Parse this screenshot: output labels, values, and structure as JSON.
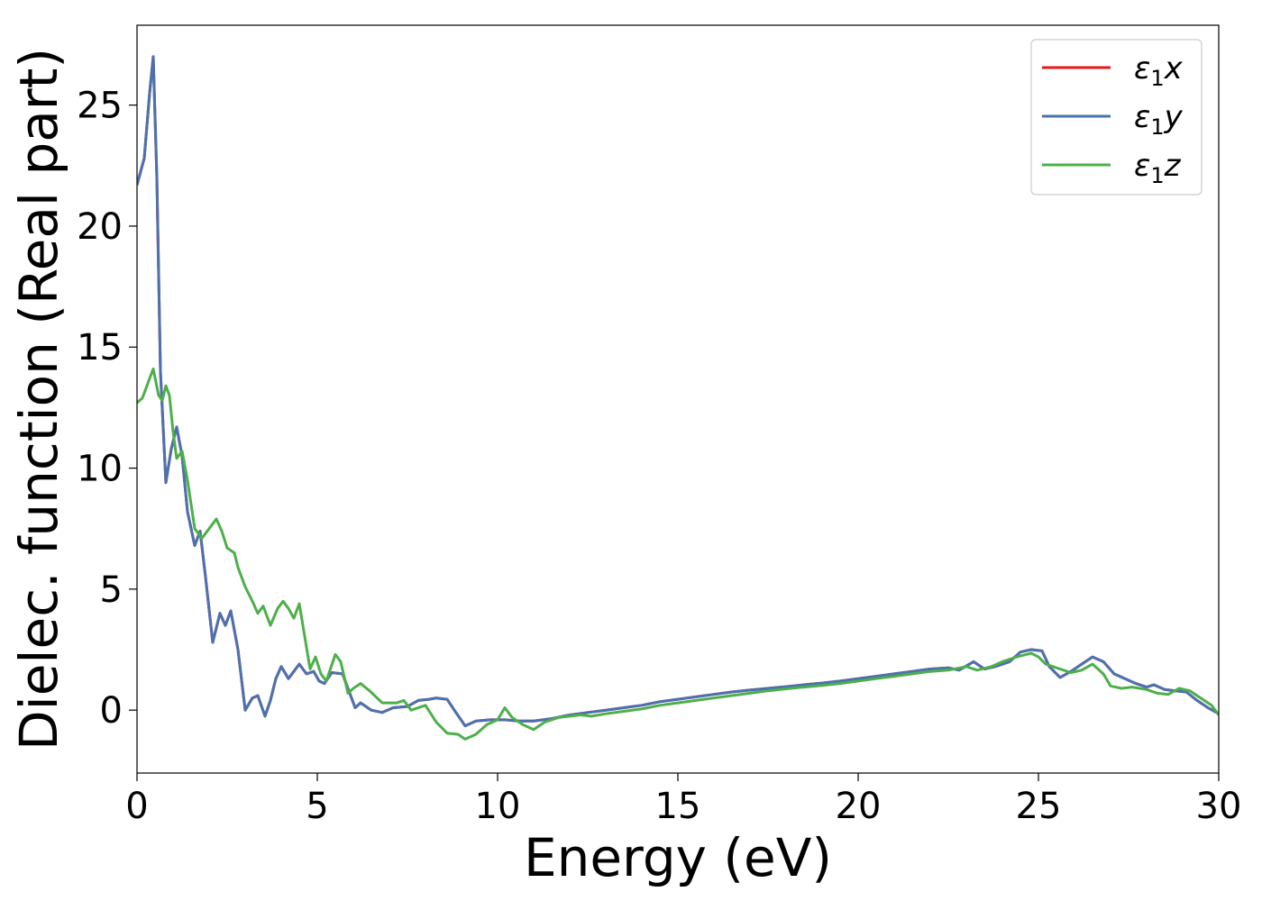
{
  "chart_data": {
    "type": "line",
    "title": "",
    "xlabel": "Energy (eV)",
    "ylabel": "Dielec. function (Real part)",
    "xlim": [
      0,
      30
    ],
    "ylim": [
      -2.6,
      28.3
    ],
    "xticks": [
      0,
      5,
      10,
      15,
      20,
      25,
      30
    ],
    "yticks": [
      0,
      5,
      10,
      15,
      20,
      25
    ],
    "grid": false,
    "legend_position": "top-right",
    "series": [
      {
        "name": "ε₁x",
        "label_base": "ε",
        "label_sub": "1",
        "label_suffix": "x",
        "color": "#e41a1c",
        "points": [
          [
            0,
            21.7
          ],
          [
            0.2,
            22.8
          ],
          [
            0.35,
            25.5
          ],
          [
            0.45,
            27.0
          ],
          [
            0.55,
            22
          ],
          [
            0.65,
            14
          ],
          [
            0.8,
            9.4
          ],
          [
            0.95,
            10.8
          ],
          [
            1.1,
            11.7
          ],
          [
            1.25,
            10.5
          ],
          [
            1.4,
            8.2
          ],
          [
            1.6,
            6.8
          ],
          [
            1.75,
            7.4
          ],
          [
            1.9,
            5.5
          ],
          [
            2.1,
            2.8
          ],
          [
            2.3,
            4.0
          ],
          [
            2.45,
            3.5
          ],
          [
            2.6,
            4.1
          ],
          [
            2.8,
            2.5
          ],
          [
            3.0,
            0.0
          ],
          [
            3.2,
            0.5
          ],
          [
            3.35,
            0.6
          ],
          [
            3.55,
            -0.25
          ],
          [
            3.7,
            0.4
          ],
          [
            3.85,
            1.3
          ],
          [
            4.0,
            1.8
          ],
          [
            4.2,
            1.3
          ],
          [
            4.5,
            1.9
          ],
          [
            4.7,
            1.5
          ],
          [
            4.9,
            1.6
          ],
          [
            5.05,
            1.2
          ],
          [
            5.2,
            1.1
          ],
          [
            5.4,
            1.55
          ],
          [
            5.7,
            1.5
          ],
          [
            5.9,
            0.7
          ],
          [
            6.05,
            0.1
          ],
          [
            6.2,
            0.3
          ],
          [
            6.5,
            0.0
          ],
          [
            6.8,
            -0.1
          ],
          [
            7.1,
            0.1
          ],
          [
            7.5,
            0.15
          ],
          [
            7.8,
            0.4
          ],
          [
            8.1,
            0.45
          ],
          [
            8.3,
            0.5
          ],
          [
            8.6,
            0.45
          ],
          [
            8.8,
            0.0
          ],
          [
            9.1,
            -0.65
          ],
          [
            9.4,
            -0.45
          ],
          [
            9.8,
            -0.4
          ],
          [
            10.2,
            -0.4
          ],
          [
            10.6,
            -0.45
          ],
          [
            11.0,
            -0.45
          ],
          [
            11.5,
            -0.35
          ],
          [
            12.0,
            -0.2
          ],
          [
            12.5,
            -0.1
          ],
          [
            13.0,
            0.0
          ],
          [
            13.5,
            0.1
          ],
          [
            14.0,
            0.2
          ],
          [
            14.5,
            0.35
          ],
          [
            15.0,
            0.45
          ],
          [
            15.5,
            0.55
          ],
          [
            16.0,
            0.65
          ],
          [
            16.5,
            0.75
          ],
          [
            17.0,
            0.83
          ],
          [
            17.5,
            0.9
          ],
          [
            18.0,
            0.97
          ],
          [
            18.5,
            1.05
          ],
          [
            19.0,
            1.12
          ],
          [
            19.5,
            1.2
          ],
          [
            20.0,
            1.3
          ],
          [
            20.5,
            1.4
          ],
          [
            21.0,
            1.5
          ],
          [
            21.5,
            1.6
          ],
          [
            22.0,
            1.7
          ],
          [
            22.5,
            1.75
          ],
          [
            22.8,
            1.65
          ],
          [
            23.2,
            2.0
          ],
          [
            23.5,
            1.7
          ],
          [
            23.8,
            1.8
          ],
          [
            24.2,
            2.0
          ],
          [
            24.5,
            2.4
          ],
          [
            24.8,
            2.5
          ],
          [
            25.1,
            2.45
          ],
          [
            25.3,
            1.8
          ],
          [
            25.6,
            1.35
          ],
          [
            25.9,
            1.6
          ],
          [
            26.2,
            1.9
          ],
          [
            26.5,
            2.2
          ],
          [
            26.8,
            2.0
          ],
          [
            27.1,
            1.5
          ],
          [
            27.4,
            1.3
          ],
          [
            27.7,
            1.1
          ],
          [
            28.0,
            0.95
          ],
          [
            28.2,
            1.05
          ],
          [
            28.5,
            0.85
          ],
          [
            28.8,
            0.8
          ],
          [
            29.1,
            0.75
          ],
          [
            29.4,
            0.4
          ],
          [
            29.7,
            0.1
          ],
          [
            30.0,
            -0.15
          ]
        ]
      },
      {
        "name": "ε₁y",
        "label_base": "ε",
        "label_sub": "1",
        "label_suffix": "y",
        "color": "#4a72b0",
        "same_as": 0
      },
      {
        "name": "ε₁z",
        "label_base": "ε",
        "label_sub": "1",
        "label_suffix": "z",
        "color": "#4daf4a",
        "points": [
          [
            0,
            12.7
          ],
          [
            0.15,
            12.9
          ],
          [
            0.3,
            13.5
          ],
          [
            0.45,
            14.1
          ],
          [
            0.6,
            13.0
          ],
          [
            0.7,
            12.8
          ],
          [
            0.8,
            13.4
          ],
          [
            0.9,
            13.0
          ],
          [
            1.0,
            11.5
          ],
          [
            1.1,
            10.4
          ],
          [
            1.25,
            10.7
          ],
          [
            1.4,
            9.5
          ],
          [
            1.6,
            7.5
          ],
          [
            1.8,
            7.1
          ],
          [
            2.0,
            7.5
          ],
          [
            2.2,
            7.9
          ],
          [
            2.35,
            7.4
          ],
          [
            2.5,
            6.7
          ],
          [
            2.7,
            6.5
          ],
          [
            2.8,
            5.9
          ],
          [
            3.0,
            5.1
          ],
          [
            3.2,
            4.5
          ],
          [
            3.35,
            4.0
          ],
          [
            3.5,
            4.3
          ],
          [
            3.7,
            3.5
          ],
          [
            3.9,
            4.2
          ],
          [
            4.05,
            4.5
          ],
          [
            4.2,
            4.2
          ],
          [
            4.35,
            3.8
          ],
          [
            4.5,
            4.4
          ],
          [
            4.6,
            3.5
          ],
          [
            4.8,
            1.7
          ],
          [
            4.95,
            2.2
          ],
          [
            5.1,
            1.5
          ],
          [
            5.25,
            1.2
          ],
          [
            5.5,
            2.3
          ],
          [
            5.65,
            2.0
          ],
          [
            5.85,
            0.7
          ],
          [
            6.0,
            0.9
          ],
          [
            6.2,
            1.1
          ],
          [
            6.45,
            0.8
          ],
          [
            6.8,
            0.3
          ],
          [
            7.2,
            0.3
          ],
          [
            7.4,
            0.4
          ],
          [
            7.6,
            0.0
          ],
          [
            7.8,
            0.1
          ],
          [
            8.0,
            0.2
          ],
          [
            8.3,
            -0.5
          ],
          [
            8.6,
            -0.95
          ],
          [
            8.9,
            -1.0
          ],
          [
            9.1,
            -1.2
          ],
          [
            9.4,
            -1.0
          ],
          [
            9.7,
            -0.6
          ],
          [
            10.0,
            -0.4
          ],
          [
            10.2,
            0.1
          ],
          [
            10.4,
            -0.3
          ],
          [
            10.7,
            -0.6
          ],
          [
            11.0,
            -0.8
          ],
          [
            11.3,
            -0.5
          ],
          [
            11.7,
            -0.3
          ],
          [
            12.0,
            -0.25
          ],
          [
            12.3,
            -0.2
          ],
          [
            12.6,
            -0.25
          ],
          [
            13.0,
            -0.15
          ],
          [
            13.5,
            -0.05
          ],
          [
            14.0,
            0.05
          ],
          [
            14.5,
            0.2
          ],
          [
            15.0,
            0.3
          ],
          [
            15.5,
            0.4
          ],
          [
            16.0,
            0.5
          ],
          [
            16.5,
            0.6
          ],
          [
            17.0,
            0.7
          ],
          [
            17.5,
            0.8
          ],
          [
            18.0,
            0.88
          ],
          [
            18.5,
            0.95
          ],
          [
            19.0,
            1.02
          ],
          [
            19.5,
            1.1
          ],
          [
            20.0,
            1.2
          ],
          [
            20.5,
            1.3
          ],
          [
            21.0,
            1.4
          ],
          [
            21.5,
            1.5
          ],
          [
            22.0,
            1.6
          ],
          [
            22.5,
            1.65
          ],
          [
            23.0,
            1.8
          ],
          [
            23.3,
            1.65
          ],
          [
            23.7,
            1.8
          ],
          [
            24.0,
            2.0
          ],
          [
            24.4,
            2.2
          ],
          [
            24.8,
            2.35
          ],
          [
            25.0,
            2.2
          ],
          [
            25.2,
            1.9
          ],
          [
            25.5,
            1.75
          ],
          [
            25.9,
            1.55
          ],
          [
            26.2,
            1.65
          ],
          [
            26.5,
            1.9
          ],
          [
            26.8,
            1.5
          ],
          [
            27.0,
            1.0
          ],
          [
            27.3,
            0.9
          ],
          [
            27.6,
            0.95
          ],
          [
            28.0,
            0.85
          ],
          [
            28.3,
            0.7
          ],
          [
            28.6,
            0.65
          ],
          [
            28.9,
            0.9
          ],
          [
            29.2,
            0.8
          ],
          [
            29.5,
            0.5
          ],
          [
            29.8,
            0.2
          ],
          [
            30.0,
            -0.2
          ]
        ]
      }
    ]
  }
}
